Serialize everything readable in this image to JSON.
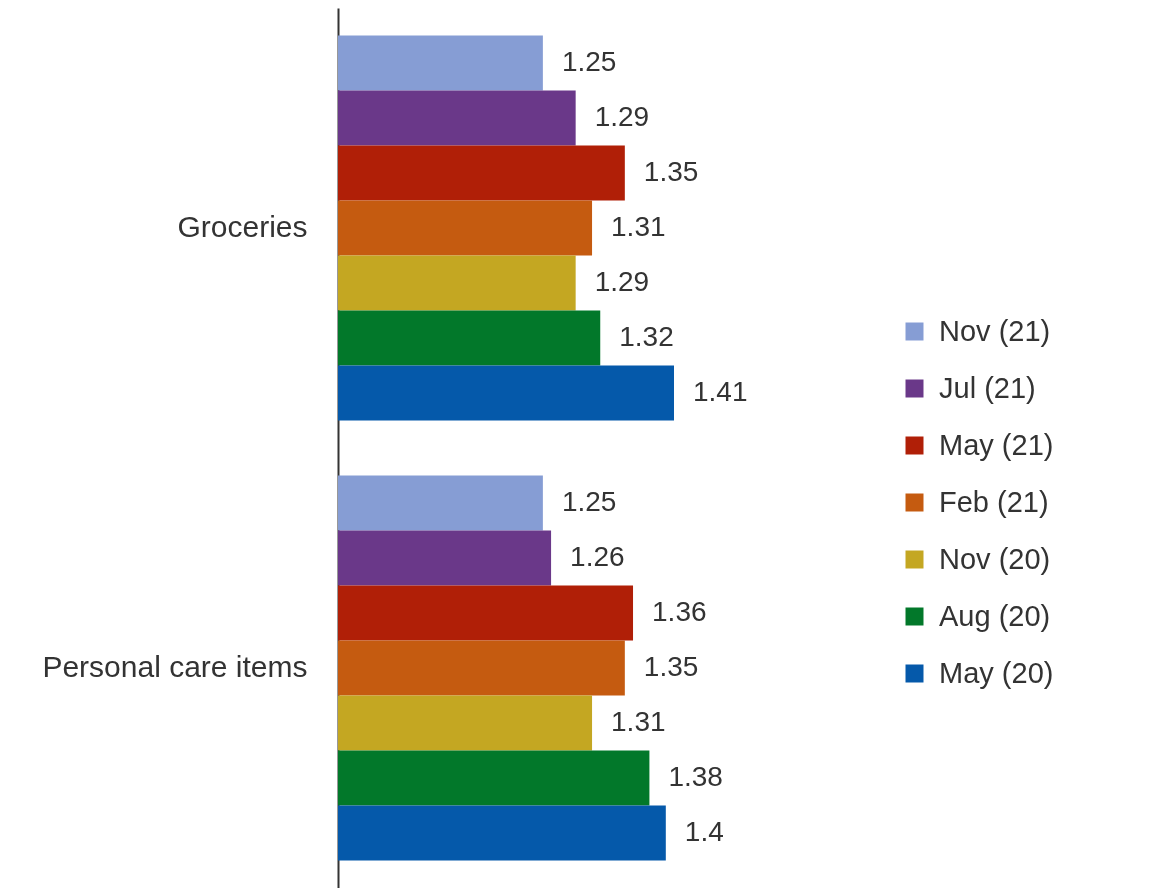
{
  "chart_data": {
    "type": "bar",
    "orientation": "horizontal",
    "categories": [
      "Groceries",
      "Personal care items"
    ],
    "series": [
      {
        "name": "Nov (21)",
        "color": "#869dd4",
        "values": [
          1.25,
          1.25
        ]
      },
      {
        "name": "Jul (21)",
        "color": "#6a3889",
        "values": [
          1.29,
          1.26
        ]
      },
      {
        "name": "May (21)",
        "color": "#b01f07",
        "values": [
          1.35,
          1.36
        ]
      },
      {
        "name": "Feb (21)",
        "color": "#c55b10",
        "values": [
          1.31,
          1.35
        ]
      },
      {
        "name": "Nov (20)",
        "color": "#c4a722",
        "values": [
          1.29,
          1.31
        ]
      },
      {
        "name": "Aug (20)",
        "color": "#02782a",
        "values": [
          1.32,
          1.38
        ]
      },
      {
        "name": "May (20)",
        "color": "#0559aa",
        "values": [
          1.41,
          1.4
        ]
      }
    ],
    "xlim": [
      1,
      1.41
    ],
    "data_labels": true,
    "legend": "right",
    "tick_labels": "y"
  }
}
